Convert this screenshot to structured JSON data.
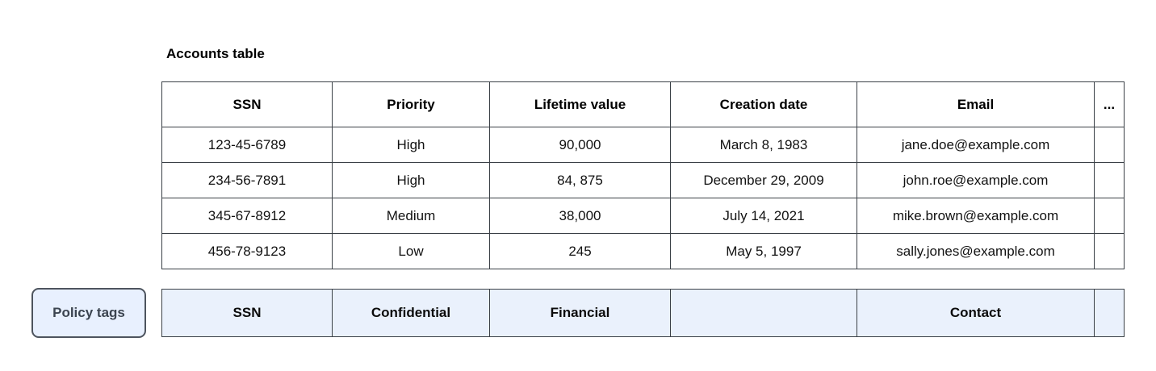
{
  "title": "Accounts table",
  "table": {
    "columns": [
      "SSN",
      "Priority",
      "Lifetime value",
      "Creation date",
      "Email",
      "..."
    ],
    "rows": [
      [
        "123-45-6789",
        "High",
        "90,000",
        "March 8, 1983",
        "jane.doe@example.com",
        ""
      ],
      [
        "234-56-7891",
        "High",
        "84, 875",
        "December 29, 2009",
        "john.roe@example.com",
        ""
      ],
      [
        "345-67-8912",
        "Medium",
        "38,000",
        "July 14, 2021",
        "mike.brown@example.com",
        ""
      ],
      [
        "456-78-9123",
        "Low",
        "245",
        "May 5, 1997",
        "sally.jones@example.com",
        ""
      ]
    ]
  },
  "policy_tags": {
    "label": "Policy tags",
    "tags": [
      "SSN",
      "Confidential",
      "Financial",
      "",
      "Contact",
      ""
    ]
  },
  "colors": {
    "table_border": "#3a4046",
    "policy_row_bg": "#eaf1fc",
    "policy_button_bg": "#e8f0fe",
    "policy_button_border": "#4d545e",
    "policy_button_text": "#3b4450",
    "text": "#000000",
    "background": "#ffffff"
  }
}
